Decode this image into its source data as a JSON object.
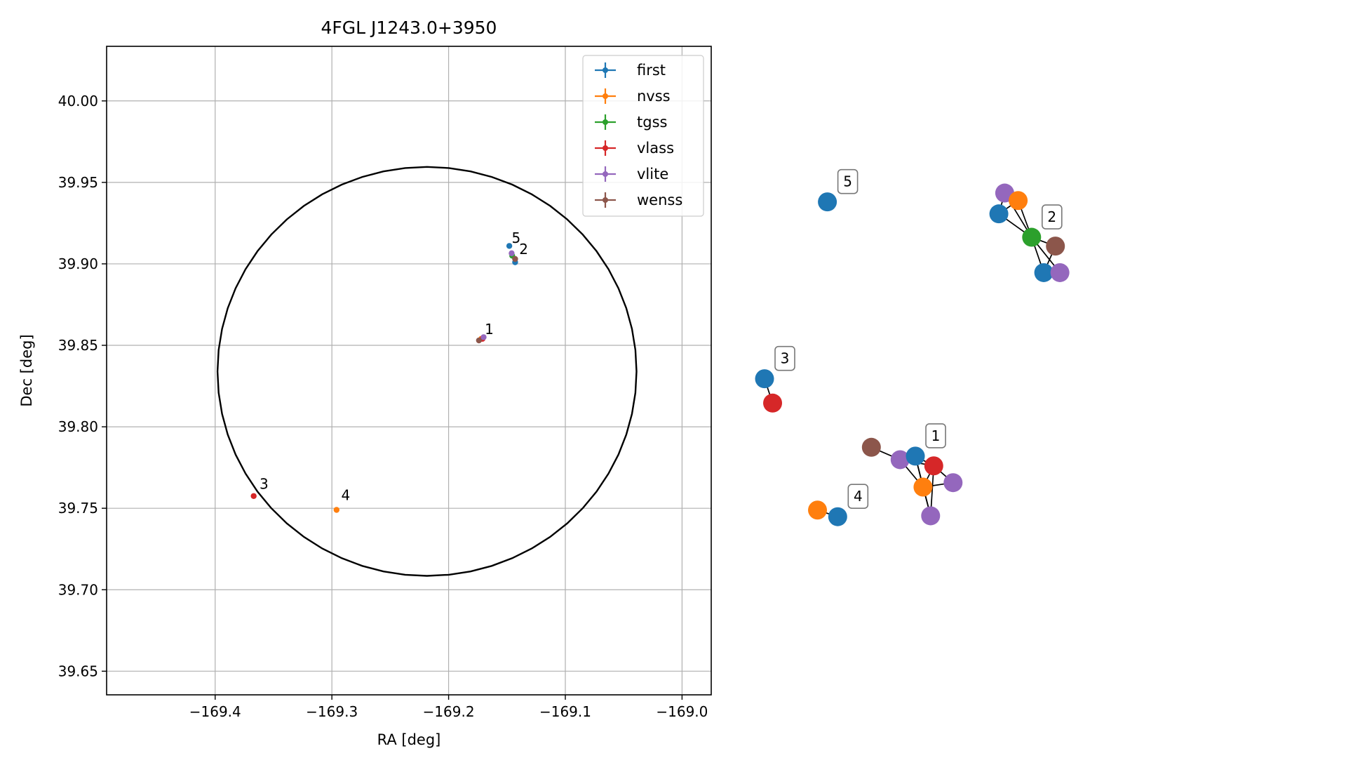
{
  "chart_data": [
    {
      "type": "scatter",
      "title": "4FGL J1243.0+3950",
      "xlabel": "RA [deg]",
      "ylabel": "Dec [deg]",
      "xlim": [
        -169.493,
        -168.975
      ],
      "ylim": [
        39.6355,
        40.0335
      ],
      "x_ticks": [
        -169.4,
        -169.3,
        -169.2,
        -169.1,
        -169.0
      ],
      "x_tick_labels": [
        "−169.4",
        "−169.3",
        "−169.2",
        "−169.1",
        "−169.0"
      ],
      "y_ticks": [
        39.65,
        39.7,
        39.75,
        39.8,
        39.85,
        39.9,
        39.95,
        40.0
      ],
      "y_tick_labels": [
        "39.65",
        "39.70",
        "39.75",
        "39.80",
        "39.85",
        "39.90",
        "39.95",
        "40.00"
      ],
      "grid": true,
      "legend_position": "top-right",
      "ellipse": {
        "center_ra": -169.2185,
        "center_dec": 39.834,
        "half_width_ra": 0.1795,
        "half_height_dec": 0.1255,
        "color": "#000000"
      },
      "series": [
        {
          "name": "first",
          "color": "#1f77b4",
          "points": [
            [
              -169.148,
              39.911
            ],
            [
              -169.143,
              39.901
            ]
          ]
        },
        {
          "name": "nvss",
          "color": "#ff7f0e",
          "points": [
            [
              -169.296,
              39.749
            ],
            [
              -169.172,
              39.854
            ]
          ]
        },
        {
          "name": "tgss",
          "color": "#2ca02c",
          "points": [
            [
              -169.1455,
              39.905
            ]
          ]
        },
        {
          "name": "vlass",
          "color": "#d62728",
          "points": [
            [
              -169.367,
              39.7575
            ],
            [
              -169.171,
              39.854
            ]
          ]
        },
        {
          "name": "vlite",
          "color": "#9467bd",
          "points": [
            [
              -169.146,
              39.9065
            ],
            [
              -169.17,
              39.855
            ]
          ]
        },
        {
          "name": "wenss",
          "color": "#8c564b",
          "points": [
            [
              -169.143,
              39.903
            ],
            [
              -169.174,
              39.853
            ]
          ]
        }
      ],
      "annotations": [
        {
          "text": "5",
          "ra": -169.146,
          "dec": 39.913
        },
        {
          "text": "2",
          "ra": -169.1395,
          "dec": 39.906
        },
        {
          "text": "1",
          "ra": -169.169,
          "dec": 39.857
        },
        {
          "text": "3",
          "ra": -169.362,
          "dec": 39.762
        },
        {
          "text": "4",
          "ra": -169.292,
          "dec": 39.755
        }
      ]
    },
    {
      "type": "network",
      "nodes": [
        {
          "id": "g5_first",
          "color": "#1f77b4",
          "x": 0.14,
          "y": 0.845
        },
        {
          "id": "g2_vlite_a",
          "color": "#9467bd",
          "x": 0.535,
          "y": 0.865
        },
        {
          "id": "g2_nvss",
          "color": "#ff7f0e",
          "x": 0.565,
          "y": 0.848
        },
        {
          "id": "g2_first_a",
          "color": "#1f77b4",
          "x": 0.522,
          "y": 0.818
        },
        {
          "id": "g2_tgss",
          "color": "#2ca02c",
          "x": 0.595,
          "y": 0.765
        },
        {
          "id": "g2_wenss",
          "color": "#8c564b",
          "x": 0.648,
          "y": 0.745
        },
        {
          "id": "g2_first_b",
          "color": "#1f77b4",
          "x": 0.622,
          "y": 0.685
        },
        {
          "id": "g2_vlite_b",
          "color": "#9467bd",
          "x": 0.658,
          "y": 0.685
        },
        {
          "id": "g3_first",
          "color": "#1f77b4",
          "x": 0.0,
          "y": 0.445
        },
        {
          "id": "g3_vlass",
          "color": "#d62728",
          "x": 0.018,
          "y": 0.39
        },
        {
          "id": "g1_wenss",
          "color": "#8c564b",
          "x": 0.238,
          "y": 0.29
        },
        {
          "id": "g1_vlite_a",
          "color": "#9467bd",
          "x": 0.302,
          "y": 0.262
        },
        {
          "id": "g1_first",
          "color": "#1f77b4",
          "x": 0.336,
          "y": 0.27
        },
        {
          "id": "g1_vlass",
          "color": "#d62728",
          "x": 0.377,
          "y": 0.248
        },
        {
          "id": "g1_nvss",
          "color": "#ff7f0e",
          "x": 0.353,
          "y": 0.2
        },
        {
          "id": "g1_vlite_b",
          "color": "#9467bd",
          "x": 0.42,
          "y": 0.21
        },
        {
          "id": "g1_vlite_c",
          "color": "#9467bd",
          "x": 0.37,
          "y": 0.135
        },
        {
          "id": "g4_nvss",
          "color": "#ff7f0e",
          "x": 0.118,
          "y": 0.148
        },
        {
          "id": "g4_first",
          "color": "#1f77b4",
          "x": 0.163,
          "y": 0.133
        }
      ],
      "edges": [
        [
          "g2_vlite_a",
          "g2_nvss"
        ],
        [
          "g2_vlite_a",
          "g2_first_a"
        ],
        [
          "g2_vlite_a",
          "g2_tgss"
        ],
        [
          "g2_nvss",
          "g2_first_a"
        ],
        [
          "g2_nvss",
          "g2_tgss"
        ],
        [
          "g2_first_a",
          "g2_tgss"
        ],
        [
          "g2_tgss",
          "g2_wenss"
        ],
        [
          "g2_tgss",
          "g2_first_b"
        ],
        [
          "g2_tgss",
          "g2_vlite_b"
        ],
        [
          "g2_wenss",
          "g2_first_b"
        ],
        [
          "g2_first_b",
          "g2_vlite_b"
        ],
        [
          "g3_first",
          "g3_vlass"
        ],
        [
          "g1_wenss",
          "g1_vlite_a"
        ],
        [
          "g1_vlite_a",
          "g1_first"
        ],
        [
          "g1_vlite_a",
          "g1_vlass"
        ],
        [
          "g1_vlite_a",
          "g1_nvss"
        ],
        [
          "g1_first",
          "g1_vlass"
        ],
        [
          "g1_first",
          "g1_nvss"
        ],
        [
          "g1_first",
          "g1_vlite_c"
        ],
        [
          "g1_vlass",
          "g1_nvss"
        ],
        [
          "g1_vlass",
          "g1_vlite_b"
        ],
        [
          "g1_vlass",
          "g1_vlite_c"
        ],
        [
          "g1_nvss",
          "g1_vlite_b"
        ],
        [
          "g1_nvss",
          "g1_vlite_c"
        ],
        [
          "g4_nvss",
          "g4_first"
        ]
      ],
      "labels": [
        {
          "text": "5",
          "near": "g5_first"
        },
        {
          "text": "2",
          "near": "g2_tgss"
        },
        {
          "text": "3",
          "near": "g3_first"
        },
        {
          "text": "1",
          "near": "g1_first"
        },
        {
          "text": "4",
          "near": "g4_first"
        }
      ]
    }
  ]
}
